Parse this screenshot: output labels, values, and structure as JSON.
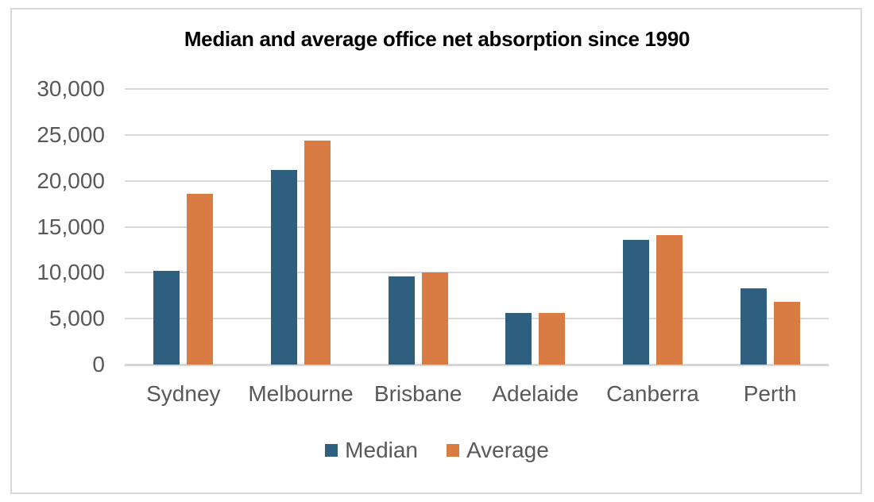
{
  "chart_data": {
    "type": "bar",
    "title": "Median and average office net absorption since 1990",
    "categories": [
      "Sydney",
      "Melbourne",
      "Brisbane",
      "Adelaide",
      "Canberra",
      "Perth"
    ],
    "series": [
      {
        "name": "Median",
        "color": "#2E5F7E",
        "values": [
          10200,
          21200,
          9600,
          5650,
          13600,
          8300
        ]
      },
      {
        "name": "Average",
        "color": "#D97C43",
        "values": [
          18600,
          24400,
          10050,
          5650,
          14050,
          6850
        ]
      }
    ],
    "ylim": [
      0,
      30000
    ],
    "yticks": [
      {
        "value": 0,
        "label": "0"
      },
      {
        "value": 5000,
        "label": "5,000"
      },
      {
        "value": 10000,
        "label": "10,000"
      },
      {
        "value": 15000,
        "label": "15,000"
      },
      {
        "value": 20000,
        "label": "20,000"
      },
      {
        "value": 25000,
        "label": "25,000"
      },
      {
        "value": 30000,
        "label": "30,000"
      }
    ],
    "grid": true,
    "legend_position": "bottom",
    "colors": {
      "gridline": "#D9D9D9",
      "axis_text": "#595959",
      "title_text": "#000000"
    }
  }
}
